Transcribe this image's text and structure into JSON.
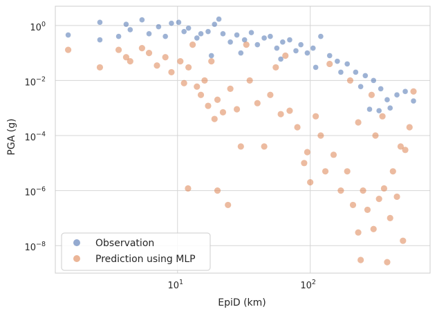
{
  "chart_data": {
    "type": "scatter",
    "xlabel": "EpiD (km)",
    "ylabel": "PGA (g)",
    "x_scale": "log",
    "y_scale": "log",
    "xlim": [
      1.2,
      800
    ],
    "ylim": [
      1e-09,
      5
    ],
    "x_ticks": [
      {
        "value": 10,
        "label_base": "10",
        "label_exp": "1"
      },
      {
        "value": 100,
        "label_base": "10",
        "label_exp": "2"
      }
    ],
    "y_ticks": [
      {
        "value": 1,
        "label_base": "10",
        "label_exp": "0"
      },
      {
        "value": 0.01,
        "label_base": "10",
        "label_exp": "−2"
      },
      {
        "value": 0.0001,
        "label_base": "10",
        "label_exp": "−4"
      },
      {
        "value": 1e-06,
        "label_base": "10",
        "label_exp": "−6"
      },
      {
        "value": 1e-08,
        "label_base": "10",
        "label_exp": "−8"
      }
    ],
    "grid": true,
    "legend_position": "bottom-left",
    "series": [
      {
        "name": "Observation",
        "color": "#4c72b0",
        "points": [
          [
            1.5,
            0.45
          ],
          [
            2.6,
            1.3
          ],
          [
            2.6,
            0.3
          ],
          [
            3.6,
            0.4
          ],
          [
            4.1,
            1.1
          ],
          [
            4.4,
            0.7
          ],
          [
            5.4,
            1.6
          ],
          [
            6.1,
            0.5
          ],
          [
            7.2,
            0.9
          ],
          [
            8.1,
            0.4
          ],
          [
            9.0,
            1.2
          ],
          [
            10.2,
            1.3
          ],
          [
            11.2,
            0.6
          ],
          [
            12.1,
            0.8
          ],
          [
            14.0,
            0.35
          ],
          [
            15.0,
            0.5
          ],
          [
            17.0,
            0.6
          ],
          [
            19.0,
            1.1
          ],
          [
            20.5,
            1.7
          ],
          [
            22.0,
            0.5
          ],
          [
            25.0,
            0.25
          ],
          [
            28.0,
            0.45
          ],
          [
            32.0,
            0.3
          ],
          [
            36.0,
            0.55
          ],
          [
            40.0,
            0.2
          ],
          [
            45.0,
            0.35
          ],
          [
            50.0,
            0.4
          ],
          [
            56.0,
            0.15
          ],
          [
            62.0,
            0.25
          ],
          [
            70.0,
            0.3
          ],
          [
            78.0,
            0.12
          ],
          [
            85.0,
            0.2
          ],
          [
            95.0,
            0.1
          ],
          [
            105.0,
            0.15
          ],
          [
            120.0,
            0.4
          ],
          [
            140.0,
            0.08
          ],
          [
            160.0,
            0.05
          ],
          [
            190.0,
            0.04
          ],
          [
            220.0,
            0.02
          ],
          [
            260.0,
            0.015
          ],
          [
            300.0,
            0.01
          ],
          [
            340.0,
            0.005
          ],
          [
            380.0,
            0.002
          ],
          [
            450.0,
            0.003
          ],
          [
            520.0,
            0.004
          ],
          [
            600.0,
            0.0018
          ],
          [
            18.0,
            0.08
          ],
          [
            30.0,
            0.1
          ],
          [
            60.0,
            0.06
          ],
          [
            110.0,
            0.03
          ],
          [
            170.0,
            0.02
          ],
          [
            240.0,
            0.006
          ],
          [
            400.0,
            0.001
          ],
          [
            330.0,
            0.0008
          ],
          [
            280.0,
            0.0009
          ]
        ]
      },
      {
        "name": "Prediction using MLP",
        "color": "#dd8452",
        "points": [
          [
            1.5,
            0.13
          ],
          [
            2.6,
            0.03
          ],
          [
            3.6,
            0.13
          ],
          [
            4.1,
            0.07
          ],
          [
            4.4,
            0.05
          ],
          [
            5.4,
            0.15
          ],
          [
            6.1,
            0.1
          ],
          [
            7.0,
            0.035
          ],
          [
            8.1,
            0.07
          ],
          [
            9.0,
            0.02
          ],
          [
            10.5,
            0.05
          ],
          [
            11.2,
            0.008
          ],
          [
            12.1,
            0.03
          ],
          [
            13.0,
            0.2
          ],
          [
            14.0,
            0.006
          ],
          [
            15.0,
            0.003
          ],
          [
            16.0,
            0.01
          ],
          [
            17.0,
            0.0012
          ],
          [
            19.0,
            0.0004
          ],
          [
            20.0,
            0.002
          ],
          [
            22.0,
            0.0007
          ],
          [
            25.0,
            0.005
          ],
          [
            28.0,
            0.0009
          ],
          [
            30.0,
            4e-05
          ],
          [
            35.0,
            0.01
          ],
          [
            40.0,
            0.0015
          ],
          [
            45.0,
            4e-05
          ],
          [
            50.0,
            0.003
          ],
          [
            55.0,
            0.03
          ],
          [
            60.0,
            0.0006
          ],
          [
            70.0,
            0.0008
          ],
          [
            80.0,
            0.0002
          ],
          [
            90.0,
            1e-05
          ],
          [
            95.0,
            2.5e-05
          ],
          [
            100.0,
            2e-06
          ],
          [
            110.0,
            0.0005
          ],
          [
            120.0,
            0.0001
          ],
          [
            130.0,
            5e-06
          ],
          [
            150.0,
            2e-05
          ],
          [
            170.0,
            1e-06
          ],
          [
            190.0,
            5e-06
          ],
          [
            210.0,
            3e-07
          ],
          [
            230.0,
            3e-08
          ],
          [
            250.0,
            1e-06
          ],
          [
            270.0,
            2e-07
          ],
          [
            300.0,
            4e-08
          ],
          [
            330.0,
            5e-07
          ],
          [
            360.0,
            1.2e-06
          ],
          [
            400.0,
            1e-07
          ],
          [
            420.0,
            5e-06
          ],
          [
            450.0,
            6e-07
          ],
          [
            480.0,
            4e-05
          ],
          [
            520.0,
            3e-05
          ],
          [
            560.0,
            0.0002
          ],
          [
            600.0,
            0.004
          ],
          [
            12.0,
            1.2e-06
          ],
          [
            20.0,
            1e-06
          ],
          [
            24.0,
            3e-07
          ],
          [
            380.0,
            2.5e-09
          ],
          [
            240.0,
            3e-09
          ],
          [
            500.0,
            1.5e-08
          ],
          [
            18.0,
            0.05
          ],
          [
            33.0,
            0.2
          ],
          [
            65.0,
            0.08
          ],
          [
            140.0,
            0.04
          ],
          [
            200.0,
            0.01
          ],
          [
            290.0,
            0.003
          ],
          [
            350.0,
            0.0005
          ],
          [
            230.0,
            0.0003
          ],
          [
            310.0,
            0.0001
          ]
        ]
      }
    ]
  }
}
